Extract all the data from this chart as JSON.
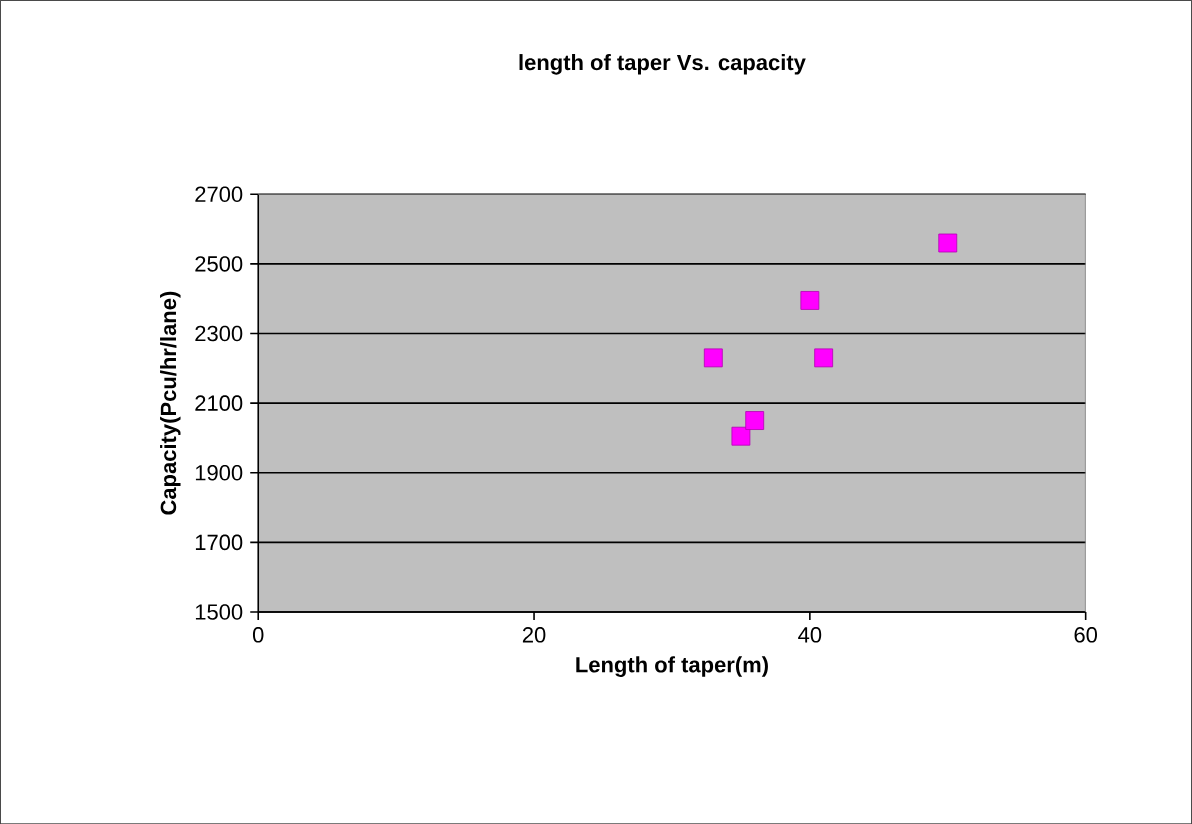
{
  "chart_data": {
    "type": "scatter",
    "title": "length of taper Vs. capacity",
    "xlabel": "Length of taper(m)",
    "ylabel": "Capacity(Pcu/hr/lane)",
    "x": [
      33,
      35,
      36,
      40,
      41,
      50
    ],
    "values": [
      2230,
      2005,
      2050,
      2395,
      2230,
      2560
    ],
    "color": "#ff00ff",
    "marker": "square",
    "grid": "y",
    "xlim": [
      0,
      60
    ],
    "xticks": [
      0,
      20,
      40,
      60
    ],
    "ylim": [
      1500,
      2700
    ],
    "yticks": [
      1500,
      1700,
      1900,
      2100,
      2300,
      2500,
      2700
    ]
  }
}
